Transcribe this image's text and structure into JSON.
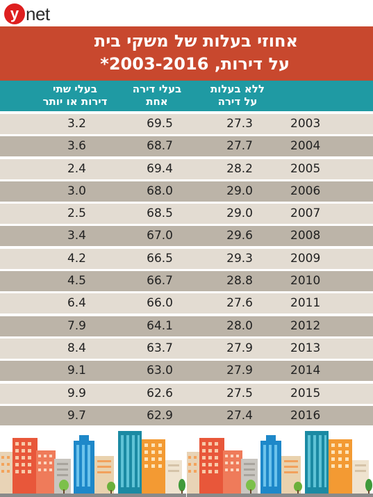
{
  "header": {
    "logo_mark": "y",
    "logo_text": "net",
    "title_line1": "אחוזי בעלות של משקי בית",
    "title_line2": "על דירות, 2003-2016*"
  },
  "chart_data": {
    "type": "table",
    "columns": [
      {
        "key": "year",
        "label": ""
      },
      {
        "key": "no_apt",
        "label_line1": "ללא בעלות",
        "label_line2": "על דירה"
      },
      {
        "key": "one_apt",
        "label_line1": "בעלי דירה",
        "label_line2": "אחת"
      },
      {
        "key": "two_plus",
        "label_line1": "בעלי שתי",
        "label_line2": "דירות או יותר"
      }
    ],
    "rows": [
      {
        "year": "2003",
        "no_apt": "27.3",
        "one_apt": "69.5",
        "two_plus": "3.2"
      },
      {
        "year": "2004",
        "no_apt": "27.7",
        "one_apt": "68.7",
        "two_plus": "3.6"
      },
      {
        "year": "2005",
        "no_apt": "28.2",
        "one_apt": "69.4",
        "two_plus": "2.4"
      },
      {
        "year": "2006",
        "no_apt": "29.0",
        "one_apt": "68.0",
        "two_plus": "3.0"
      },
      {
        "year": "2007",
        "no_apt": "29.0",
        "one_apt": "68.5",
        "two_plus": "2.5"
      },
      {
        "year": "2008",
        "no_apt": "29.6",
        "one_apt": "67.0",
        "two_plus": "3.4"
      },
      {
        "year": "2009",
        "no_apt": "29.3",
        "one_apt": "66.5",
        "two_plus": "4.2"
      },
      {
        "year": "2010",
        "no_apt": "28.8",
        "one_apt": "66.7",
        "two_plus": "4.5"
      },
      {
        "year": "2011",
        "no_apt": "27.6",
        "one_apt": "66.0",
        "two_plus": "6.4"
      },
      {
        "year": "2012",
        "no_apt": "28.0",
        "one_apt": "64.1",
        "two_plus": "7.9"
      },
      {
        "year": "2013",
        "no_apt": "27.9",
        "one_apt": "63.7",
        "two_plus": "8.4"
      },
      {
        "year": "2014",
        "no_apt": "27.9",
        "one_apt": "63.0",
        "two_plus": "9.1"
      },
      {
        "year": "2015",
        "no_apt": "27.5",
        "one_apt": "62.6",
        "two_plus": "9.9"
      },
      {
        "year": "2016",
        "no_apt": "27.4",
        "one_apt": "62.9",
        "two_plus": "9.7"
      }
    ]
  },
  "colors": {
    "title_band": "#c8482e",
    "header_band": "#1f9aa3",
    "row_light": "#e3dcd2",
    "row_dark": "#bcb4a8",
    "logo": "#de1f1f"
  },
  "decorations": {
    "footer_illustration": "city-skyline-illustration"
  }
}
